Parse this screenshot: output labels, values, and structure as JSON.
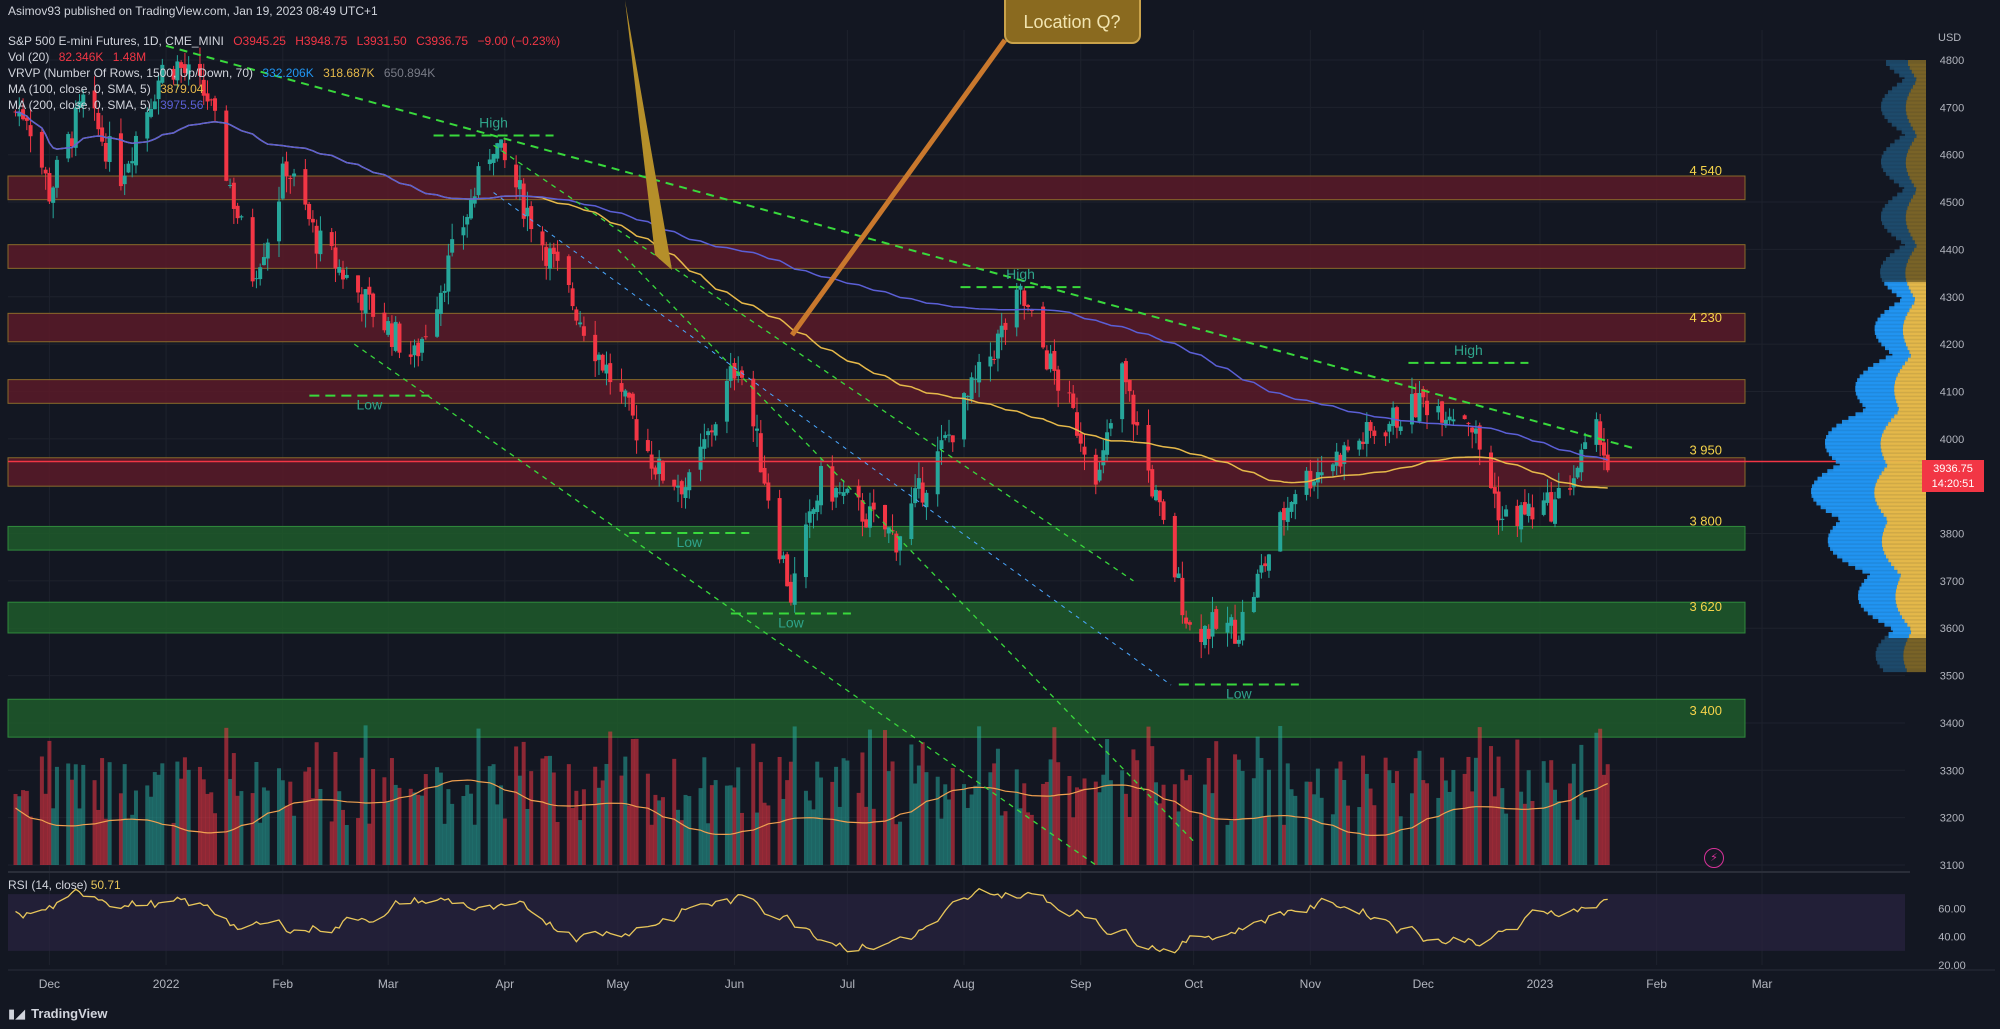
{
  "header": {
    "published": "Asimov93 published on TradingView.com, Jan 19, 2023 08:49 UTC+1",
    "symbol": "S&P 500 E-mini Futures, 1D, CME_MINI",
    "ohlc": {
      "open": "O3945.25",
      "high": "H3948.75",
      "low": "L3931.50",
      "close": "C3936.75",
      "change": "−9.00 (−0.23%)"
    },
    "volume": {
      "label": "Vol (20)",
      "v1": "82.346K",
      "v2": "1.48M"
    },
    "vrvp": {
      "label": "VRVP (Number Of Rows, 1500, Up/Down, 70)",
      "v1": "332.206K",
      "v2": "318.687K",
      "v3": "650.894K"
    },
    "ma100": {
      "label": "MA (100, close, 0, SMA, 5)",
      "value": "3879.04"
    },
    "ma200": {
      "label": "MA (200, close, 0, SMA, 5)",
      "value": "3975.56"
    }
  },
  "rsi_header": {
    "label": "RSI (14, close)",
    "value": "50.71"
  },
  "footer": {
    "brand": "TradingView"
  },
  "price_tag": {
    "price": "3936.75",
    "countdown": "14:20:51"
  },
  "colors": {
    "bg": "#131722",
    "up": "#26a69a",
    "down": "#f23645",
    "ma100": "#e6b94a",
    "ma200": "#5b5fd6",
    "resistance_zone": "#5a1a28",
    "support_zone": "#1f5a2a",
    "trend_dashed": "#39d93c",
    "rsi": "#e8c65a"
  },
  "annotation_text": "Location Q?",
  "chart_data": {
    "type": "candlestick",
    "currency": "USD",
    "y_axis": {
      "ticks": [
        3100,
        3200,
        3300,
        3400,
        3500,
        3600,
        3700,
        3800,
        3900,
        4000,
        4100,
        4200,
        4300,
        4400,
        4500,
        4600,
        4700,
        4800
      ],
      "ylim": [
        3100,
        4850
      ]
    },
    "x_axis": {
      "tick_labels": [
        "Dec",
        "2022",
        "Feb",
        "Mar",
        "Apr",
        "May",
        "Jun",
        "Jul",
        "Aug",
        "Sep",
        "Oct",
        "Nov",
        "Dec",
        "2023",
        "Feb",
        "Mar"
      ]
    },
    "price_path": [
      {
        "date": "2021-11-25",
        "close": 4690
      },
      {
        "date": "2021-12-01",
        "close": 4520
      },
      {
        "date": "2021-12-10",
        "close": 4710
      },
      {
        "date": "2021-12-20",
        "close": 4560
      },
      {
        "date": "2021-12-31",
        "close": 4780
      },
      {
        "date": "2022-01-04",
        "close": 4790
      },
      {
        "date": "2022-01-12",
        "close": 4720
      },
      {
        "date": "2022-01-24",
        "close": 4350
      },
      {
        "date": "2022-01-28",
        "close": 4430
      },
      {
        "date": "2022-02-02",
        "close": 4580
      },
      {
        "date": "2022-02-10",
        "close": 4420
      },
      {
        "date": "2022-02-24",
        "close": 4280
      },
      {
        "date": "2022-03-08",
        "close": 4170
      },
      {
        "date": "2022-03-29",
        "close": 4630
      },
      {
        "date": "2022-04-12",
        "close": 4400
      },
      {
        "date": "2022-04-29",
        "close": 4130
      },
      {
        "date": "2022-05-12",
        "close": 3930
      },
      {
        "date": "2022-05-20",
        "close": 3900
      },
      {
        "date": "2022-06-02",
        "close": 4170
      },
      {
        "date": "2022-06-16",
        "close": 3670
      },
      {
        "date": "2022-06-24",
        "close": 3910
      },
      {
        "date": "2022-07-14",
        "close": 3790
      },
      {
        "date": "2022-08-16",
        "close": 4300
      },
      {
        "date": "2022-09-06",
        "close": 3920
      },
      {
        "date": "2022-09-12",
        "close": 4140
      },
      {
        "date": "2022-09-30",
        "close": 3600
      },
      {
        "date": "2022-10-13",
        "close": 3600
      },
      {
        "date": "2022-10-28",
        "close": 3900
      },
      {
        "date": "2022-11-15",
        "close": 4000
      },
      {
        "date": "2022-12-01",
        "close": 4080
      },
      {
        "date": "2022-12-13",
        "close": 4050
      },
      {
        "date": "2022-12-22",
        "close": 3830
      },
      {
        "date": "2023-01-05",
        "close": 3860
      },
      {
        "date": "2023-01-17",
        "close": 4020
      },
      {
        "date": "2023-01-19",
        "close": 3936.75
      }
    ],
    "zone_labels": [
      "4 540",
      "4 230",
      "3 950",
      "3 800",
      "3 620",
      "3 400"
    ],
    "zones": [
      {
        "low": 4505,
        "high": 4555,
        "kind": "resistance"
      },
      {
        "low": 4360,
        "high": 4410,
        "kind": "resistance"
      },
      {
        "low": 4205,
        "high": 4265,
        "kind": "resistance"
      },
      {
        "low": 4075,
        "high": 4125,
        "kind": "resistance"
      },
      {
        "low": 3900,
        "high": 3960,
        "kind": "resistance"
      },
      {
        "low": 3765,
        "high": 3815,
        "kind": "support"
      },
      {
        "low": 3590,
        "high": 3655,
        "kind": "support"
      },
      {
        "low": 3370,
        "high": 3450,
        "kind": "support"
      }
    ],
    "markers": [
      {
        "label": "High",
        "date": "2022-03-29",
        "price": 4670
      },
      {
        "label": "High",
        "date": "2022-08-16",
        "price": 4350
      },
      {
        "label": "High",
        "date": "2022-12-13",
        "price": 4190
      },
      {
        "label": "Low",
        "date": "2022-02-24",
        "price": 4070
      },
      {
        "label": "Low",
        "date": "2022-05-20",
        "price": 3780
      },
      {
        "label": "Low",
        "date": "2022-06-16",
        "price": 3610
      },
      {
        "label": "Low",
        "date": "2022-10-13",
        "price": 3460
      }
    ],
    "rsi": {
      "ticks": [
        20,
        40,
        60
      ],
      "ylim": [
        20,
        80
      ],
      "last": 50.71
    },
    "volume_note": "volume histogram beneath price"
  }
}
